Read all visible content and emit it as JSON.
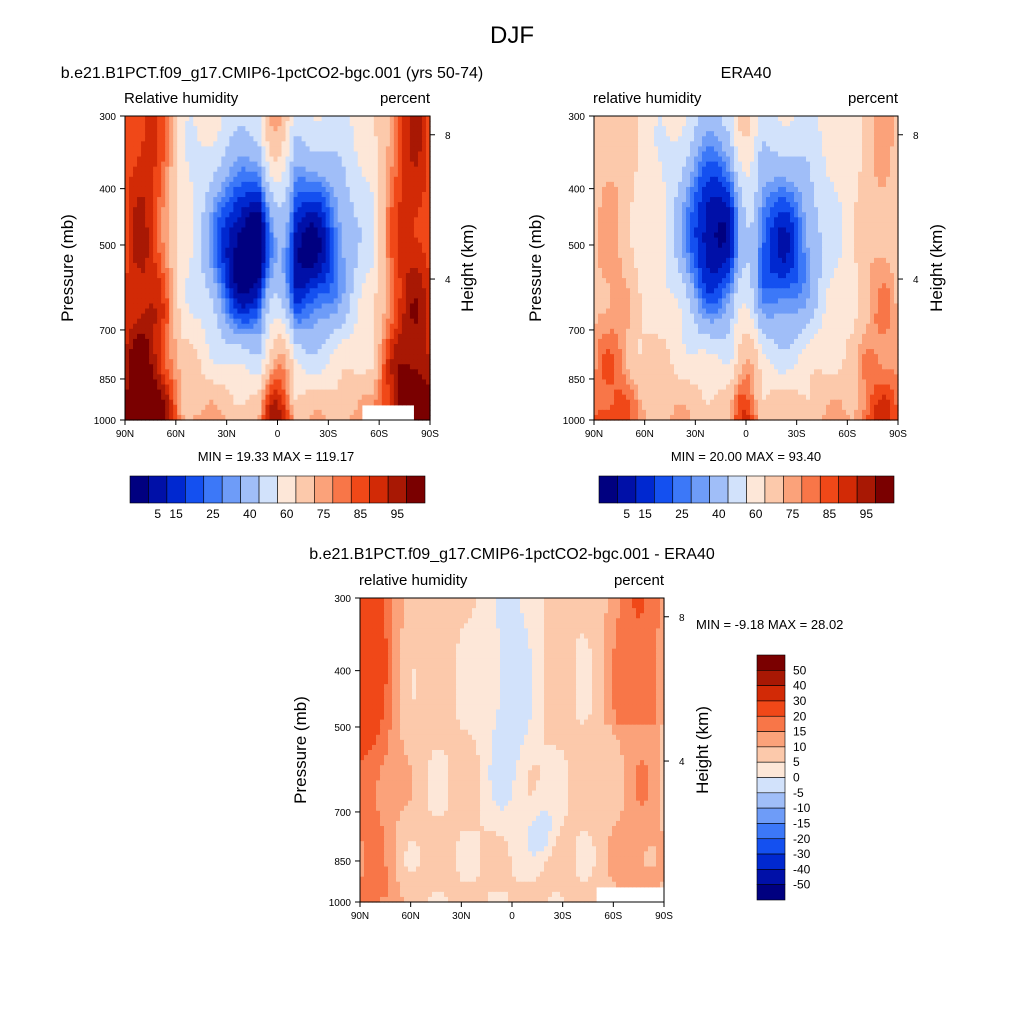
{
  "figure": {
    "title": "DJF"
  },
  "chart_data": [
    {
      "type": "heatmap",
      "title": "b.e21.B1PCT.f09_g17.CMIP6-1pctCO2-bgc.001 (yrs 50-74)",
      "left_label": "Relative humidity",
      "right_label": "percent",
      "xlabel": "",
      "ylabel": "Pressure (mb)",
      "y2label": "Height (km)",
      "x_ticks": [
        "90N",
        "60N",
        "30N",
        "0",
        "30S",
        "60S",
        "90S"
      ],
      "x_range": [
        90,
        -90
      ],
      "y_ticks": [
        300,
        400,
        500,
        700,
        850,
        1000
      ],
      "y_range": [
        300,
        1000
      ],
      "y_scale": "log",
      "y2_ticks": [
        8,
        4
      ],
      "min_label": "MIN =  19.33  MAX = 119.17",
      "min": 19.33,
      "max": 119.17,
      "colorbar": {
        "orientation": "horizontal",
        "labels": [
          "5",
          "15",
          "25",
          "40",
          "60",
          "75",
          "85",
          "95"
        ],
        "levels": [
          5,
          10,
          15,
          20,
          25,
          30,
          40,
          50,
          60,
          70,
          75,
          80,
          85,
          90,
          95
        ],
        "colors": [
          "#000080",
          "#0010a8",
          "#0028d0",
          "#1450f0",
          "#3c78f8",
          "#6e9cf8",
          "#a0bef8",
          "#d2e2fb",
          "#fde7d8",
          "#fcc9ab",
          "#fba27a",
          "#f87648",
          "#f04818",
          "#d22a06",
          "#a81804",
          "#7a0000"
        ]
      },
      "field": {
        "type": "rh",
        "dry_bands": [
          {
            "lat": 20,
            "center_p": 520,
            "width": 16,
            "depth": 55,
            "extent": 360
          },
          {
            "lat": -20,
            "center_p": 520,
            "width": 18,
            "depth": 50,
            "extent": 360
          }
        ],
        "equator_moist": 80,
        "polar_moist": 88,
        "surface_boost": 18,
        "missing": {
          "lat_from": -50,
          "lat_to": -80,
          "p_from": 940,
          "p_to": 1000
        }
      }
    },
    {
      "type": "heatmap",
      "title": "ERA40",
      "left_label": "relative humidity",
      "right_label": "percent",
      "xlabel": "",
      "ylabel": "Pressure (mb)",
      "y2label": "Height (km)",
      "x_ticks": [
        "90N",
        "60N",
        "30N",
        "0",
        "30S",
        "60S",
        "90S"
      ],
      "x_range": [
        90,
        -90
      ],
      "y_ticks": [
        300,
        400,
        500,
        700,
        850,
        1000
      ],
      "y_range": [
        300,
        1000
      ],
      "y_scale": "log",
      "y2_ticks": [
        8,
        4
      ],
      "min_label": "MIN =  20.00  MAX =  93.40",
      "min": 20.0,
      "max": 93.4,
      "colorbar": {
        "orientation": "horizontal",
        "labels": [
          "5",
          "15",
          "25",
          "40",
          "60",
          "75",
          "85",
          "95"
        ],
        "levels": [
          5,
          10,
          15,
          20,
          25,
          30,
          40,
          50,
          60,
          70,
          75,
          80,
          85,
          90,
          95
        ],
        "colors": [
          "#000080",
          "#0010a8",
          "#0028d0",
          "#1450f0",
          "#3c78f8",
          "#6e9cf8",
          "#a0bef8",
          "#d2e2fb",
          "#fde7d8",
          "#fcc9ab",
          "#fba27a",
          "#f87648",
          "#f04818",
          "#d22a06",
          "#a81804",
          "#7a0000"
        ]
      },
      "field": {
        "type": "rh",
        "dry_bands": [
          {
            "lat": 20,
            "center_p": 480,
            "width": 14,
            "depth": 52,
            "extent": 380
          },
          {
            "lat": -22,
            "center_p": 520,
            "width": 16,
            "depth": 45,
            "extent": 360
          }
        ],
        "equator_moist": 72,
        "polar_moist": 70,
        "surface_boost": 16
      }
    },
    {
      "type": "heatmap",
      "title": "b.e21.B1PCT.f09_g17.CMIP6-1pctCO2-bgc.001 - ERA40",
      "left_label": "relative humidity",
      "right_label": "percent",
      "xlabel": "",
      "ylabel": "Pressure (mb)",
      "y2label": "Height (km)",
      "x_ticks": [
        "90N",
        "60N",
        "30N",
        "0",
        "30S",
        "60S",
        "90S"
      ],
      "x_range": [
        90,
        -90
      ],
      "y_ticks": [
        300,
        400,
        500,
        700,
        850,
        1000
      ],
      "y_range": [
        300,
        1000
      ],
      "y_scale": "log",
      "y2_ticks": [
        8,
        4
      ],
      "min_label": "MIN =  -9.18  MAX =  28.02",
      "min": -9.18,
      "max": 28.02,
      "colorbar": {
        "orientation": "vertical",
        "labels": [
          "50",
          "40",
          "30",
          "20",
          "15",
          "10",
          "5",
          "0",
          "-5",
          "-10",
          "-15",
          "-20",
          "-30",
          "-40",
          "-50"
        ],
        "levels": [
          -50,
          -40,
          -30,
          -20,
          -15,
          -10,
          -5,
          0,
          5,
          10,
          15,
          20,
          30,
          40,
          50
        ],
        "colors": [
          "#000080",
          "#0010a8",
          "#0028d0",
          "#1450f0",
          "#3c78f8",
          "#6e9cf8",
          "#a0bef8",
          "#d2e2fb",
          "#fde7d8",
          "#fcc9ab",
          "#fba27a",
          "#f87648",
          "#f04818",
          "#d22a06",
          "#a81804",
          "#7a0000"
        ]
      },
      "field": {
        "type": "diff",
        "missing": {
          "lat_from": -50,
          "lat_to": -90,
          "p_from": 950,
          "p_to": 1000
        }
      }
    }
  ]
}
